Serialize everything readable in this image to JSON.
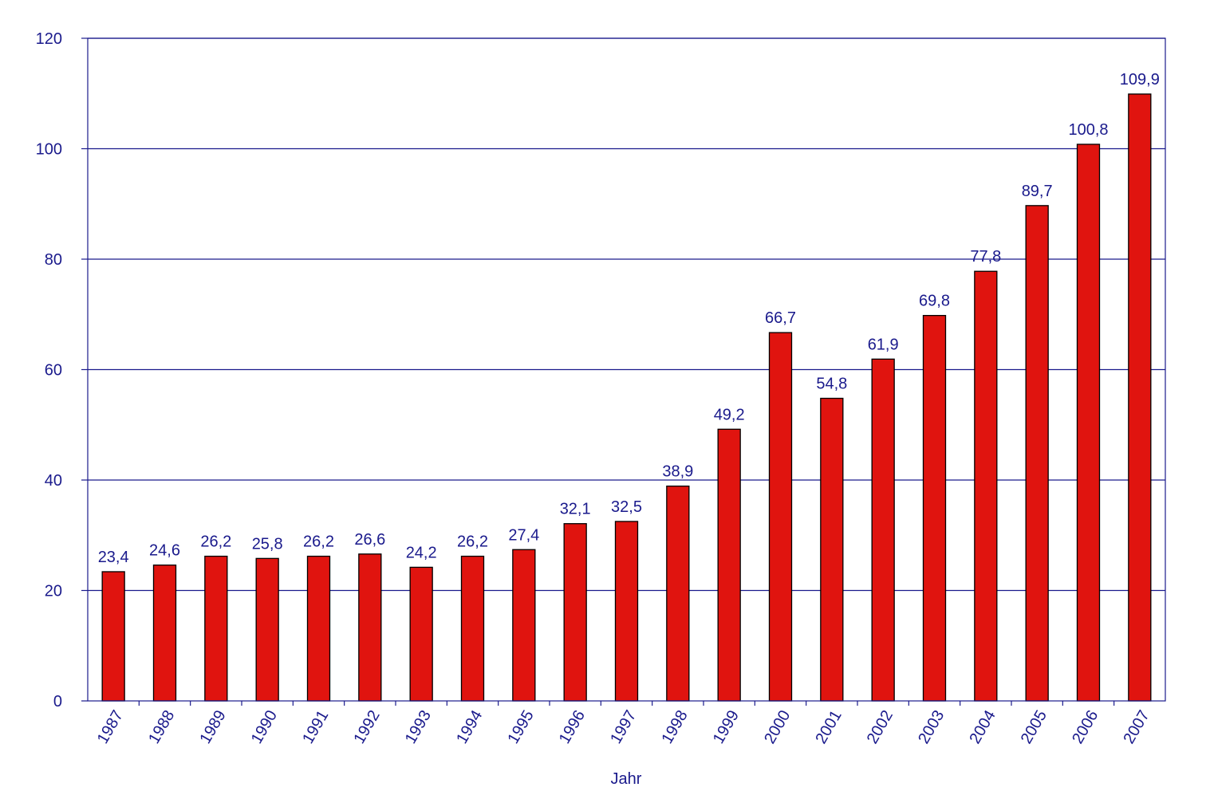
{
  "chart_data": {
    "type": "bar",
    "title": "",
    "xlabel": "Jahr",
    "ylabel": "",
    "ylim": [
      0,
      120
    ],
    "yticks": [
      0,
      20,
      40,
      60,
      80,
      100,
      120
    ],
    "ytick_labels": [
      "0",
      "20",
      "40",
      "60",
      "80",
      "100",
      "120"
    ],
    "grid": true,
    "legend": "none",
    "categories": [
      "1987",
      "1988",
      "1989",
      "1990",
      "1991",
      "1992",
      "1993",
      "1994",
      "1995",
      "1996",
      "1997",
      "1998",
      "1999",
      "2000",
      "2001",
      "2002",
      "2003",
      "2004",
      "2005",
      "2006",
      "2007"
    ],
    "values": [
      23.4,
      24.6,
      26.2,
      25.8,
      26.2,
      26.6,
      24.2,
      26.2,
      27.4,
      32.1,
      32.5,
      38.9,
      49.2,
      66.7,
      54.8,
      61.9,
      69.8,
      77.8,
      89.7,
      100.8,
      109.9
    ],
    "value_labels": [
      "23,4",
      "24,6",
      "26,2",
      "25,8",
      "26,2",
      "26,6",
      "24,2",
      "26,2",
      "27,4",
      "32,1",
      "32,5",
      "38,9",
      "49,2",
      "66,7",
      "54,8",
      "61,9",
      "69,8",
      "77,8",
      "89,7",
      "100,8",
      "109,9"
    ],
    "colors": {
      "bar": "#e0140f",
      "bar_stroke": "#000000",
      "axis": "#1a1a8c",
      "grid": "#1a1a8c",
      "text": "#1a1a8c"
    }
  }
}
